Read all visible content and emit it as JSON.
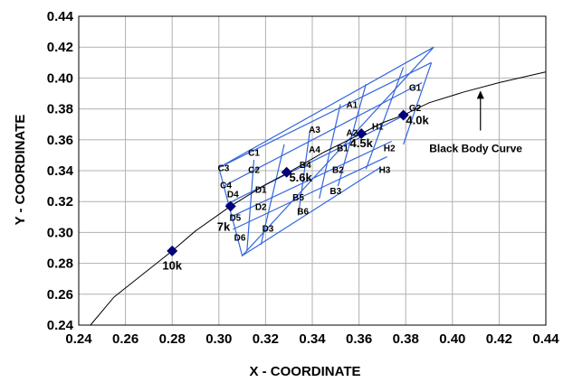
{
  "chart_data": {
    "type": "scatter",
    "xlabel": "X - COORDINATE",
    "ylabel": "Y - COORDINATE",
    "xlim": [
      0.24,
      0.44
    ],
    "ylim": [
      0.24,
      0.44
    ],
    "x_ticks": [
      "0.24",
      "0.26",
      "0.28",
      "0.30",
      "0.32",
      "0.34",
      "0.36",
      "0.38",
      "0.40",
      "0.42",
      "0.44"
    ],
    "y_ticks": [
      "0.24",
      "0.26",
      "0.28",
      "0.30",
      "0.32",
      "0.34",
      "0.36",
      "0.38",
      "0.40",
      "0.42",
      "0.44"
    ],
    "grid": true,
    "colors": {
      "bins": "#3366dd",
      "points": "#00007a",
      "curve": "#000000",
      "grid": "#b0b0b0"
    },
    "black_body_curve": {
      "label": "Black Body Curve",
      "points": [
        [
          0.245,
          0.24
        ],
        [
          0.255,
          0.258
        ],
        [
          0.27,
          0.276
        ],
        [
          0.28,
          0.288
        ],
        [
          0.29,
          0.301
        ],
        [
          0.305,
          0.317
        ],
        [
          0.32,
          0.331
        ],
        [
          0.33,
          0.339
        ],
        [
          0.345,
          0.352
        ],
        [
          0.361,
          0.364
        ],
        [
          0.37,
          0.371
        ],
        [
          0.379,
          0.376
        ],
        [
          0.39,
          0.384
        ],
        [
          0.405,
          0.391
        ],
        [
          0.42,
          0.397
        ],
        [
          0.44,
          0.404
        ]
      ]
    },
    "annotation": {
      "text": "Black Body Curve",
      "arrow_to": [
        0.412,
        0.393
      ],
      "arrow_from": [
        0.412,
        0.366
      ],
      "text_at": [
        0.41,
        0.352
      ]
    },
    "cct_points": [
      {
        "label": "10k",
        "x": 0.28,
        "y": 0.288,
        "label_at": [
          0.28,
          0.279
        ]
      },
      {
        "label": "7k",
        "x": 0.305,
        "y": 0.317,
        "label_at": [
          0.302,
          0.304
        ]
      },
      {
        "label": "5.6k",
        "x": 0.329,
        "y": 0.339,
        "label_at": [
          0.335,
          0.336
        ]
      },
      {
        "label": "4.5k",
        "x": 0.361,
        "y": 0.364,
        "label_at": [
          0.361,
          0.358
        ]
      },
      {
        "label": "4.0k",
        "x": 0.379,
        "y": 0.376,
        "label_at": [
          0.385,
          0.373
        ]
      }
    ],
    "bin_grid": {
      "lines": [
        [
          [
            0.3,
            0.342
          ],
          [
            0.31,
            0.285
          ],
          [
            0.392,
            0.42
          ],
          [
            0.3,
            0.342
          ]
        ],
        [
          [
            0.3,
            0.342
          ],
          [
            0.391,
            0.41
          ]
        ],
        [
          [
            0.302,
            0.33
          ],
          [
            0.387,
            0.397
          ]
        ],
        [
          [
            0.303,
            0.318
          ],
          [
            0.381,
            0.377
          ]
        ],
        [
          [
            0.305,
            0.31
          ],
          [
            0.374,
            0.359
          ]
        ],
        [
          [
            0.306,
            0.302
          ],
          [
            0.372,
            0.349
          ]
        ],
        [
          [
            0.31,
            0.285
          ],
          [
            0.369,
            0.342
          ]
        ],
        [
          [
            0.315,
            0.347
          ],
          [
            0.312,
            0.288
          ]
        ],
        [
          [
            0.328,
            0.357
          ],
          [
            0.318,
            0.292
          ]
        ],
        [
          [
            0.339,
            0.366
          ],
          [
            0.334,
            0.311
          ]
        ],
        [
          [
            0.352,
            0.383
          ],
          [
            0.343,
            0.322
          ]
        ],
        [
          [
            0.363,
            0.396
          ],
          [
            0.351,
            0.33
          ]
        ],
        [
          [
            0.379,
            0.407
          ],
          [
            0.363,
            0.341
          ]
        ],
        [
          [
            0.391,
            0.41
          ],
          [
            0.379,
            0.357
          ]
        ]
      ]
    },
    "bin_labels": [
      {
        "text": "G1",
        "x": 0.384,
        "y": 0.394
      },
      {
        "text": "A1",
        "x": 0.357,
        "y": 0.383
      },
      {
        "text": "G2",
        "x": 0.384,
        "y": 0.381
      },
      {
        "text": "A3",
        "x": 0.341,
        "y": 0.367
      },
      {
        "text": "A2",
        "x": 0.357,
        "y": 0.365
      },
      {
        "text": "H1",
        "x": 0.368,
        "y": 0.369
      },
      {
        "text": "C1",
        "x": 0.315,
        "y": 0.352
      },
      {
        "text": "A4",
        "x": 0.341,
        "y": 0.354
      },
      {
        "text": "B1",
        "x": 0.353,
        "y": 0.355
      },
      {
        "text": "H2",
        "x": 0.373,
        "y": 0.355
      },
      {
        "text": "C3",
        "x": 0.302,
        "y": 0.342
      },
      {
        "text": "C2",
        "x": 0.315,
        "y": 0.341
      },
      {
        "text": "B4",
        "x": 0.337,
        "y": 0.344
      },
      {
        "text": "B2",
        "x": 0.351,
        "y": 0.341
      },
      {
        "text": "H3",
        "x": 0.371,
        "y": 0.341
      },
      {
        "text": "C4",
        "x": 0.303,
        "y": 0.331
      },
      {
        "text": "D4",
        "x": 0.306,
        "y": 0.325
      },
      {
        "text": "D1",
        "x": 0.318,
        "y": 0.328
      },
      {
        "text": "B5",
        "x": 0.334,
        "y": 0.323
      },
      {
        "text": "B3",
        "x": 0.35,
        "y": 0.327
      },
      {
        "text": "D2",
        "x": 0.318,
        "y": 0.317
      },
      {
        "text": "B6",
        "x": 0.336,
        "y": 0.314
      },
      {
        "text": "D5",
        "x": 0.307,
        "y": 0.31
      },
      {
        "text": "D3",
        "x": 0.321,
        "y": 0.303
      },
      {
        "text": "D6",
        "x": 0.309,
        "y": 0.297
      }
    ]
  }
}
